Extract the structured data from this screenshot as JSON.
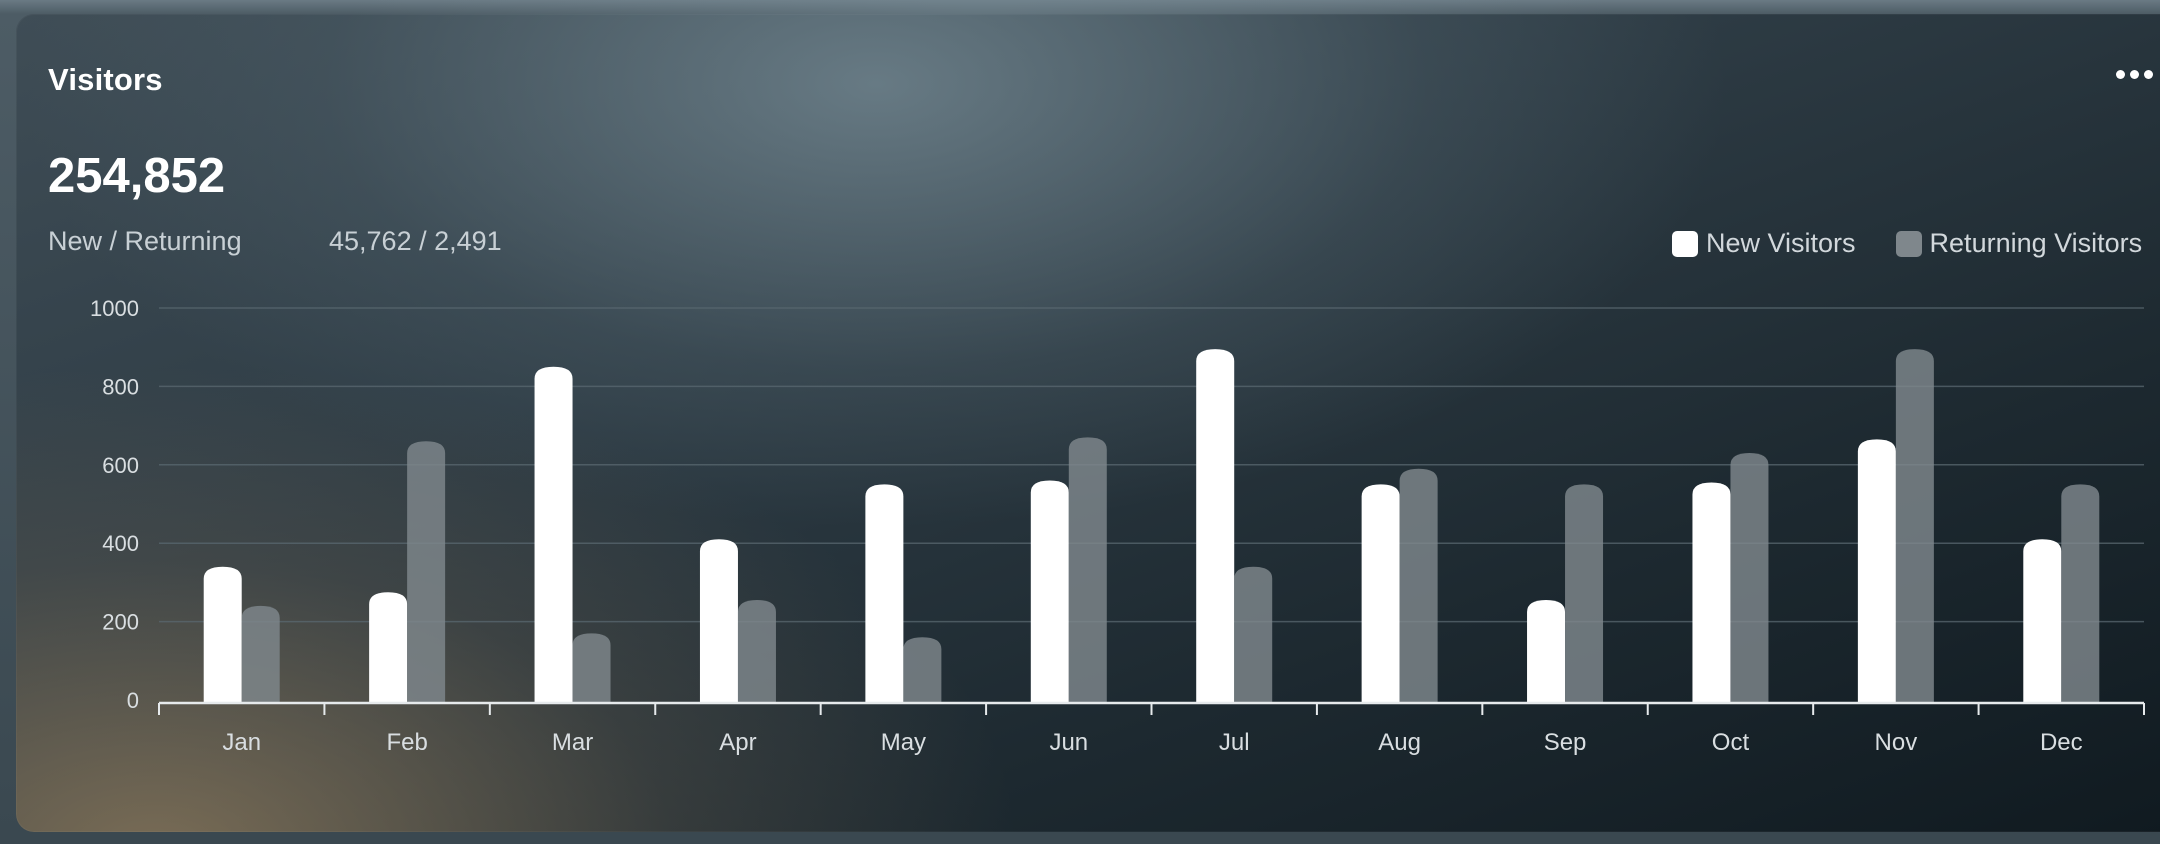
{
  "card": {
    "title": "Visitors",
    "total": "254,852",
    "sub_label": "New / Returning",
    "sub_value": "45,762 / 2,491"
  },
  "colors": {
    "new": "#ffffff",
    "returning": "#7f878c",
    "grid": "#5a6870",
    "axis": "#e6eaec",
    "tick_text": "#d9dee1"
  },
  "icons": {
    "menu": "more-dots-icon"
  },
  "chart_data": {
    "type": "bar",
    "categories": [
      "Jan",
      "Feb",
      "Mar",
      "Apr",
      "May",
      "Jun",
      "Jul",
      "Aug",
      "Sep",
      "Oct",
      "Nov",
      "Dec"
    ],
    "series": [
      {
        "name": "New Visitors",
        "values": [
          340,
          275,
          850,
          410,
          550,
          560,
          895,
          550,
          255,
          555,
          665,
          410
        ]
      },
      {
        "name": "Returning Visitors",
        "values": [
          240,
          660,
          170,
          255,
          160,
          670,
          340,
          590,
          550,
          630,
          895,
          550
        ]
      }
    ],
    "ylim": [
      0,
      1000
    ],
    "yticks": [
      "0",
      "200",
      "400",
      "600",
      "800",
      "1000"
    ],
    "xlabel": "",
    "ylabel": "",
    "grid": true,
    "legend": "top-right"
  }
}
